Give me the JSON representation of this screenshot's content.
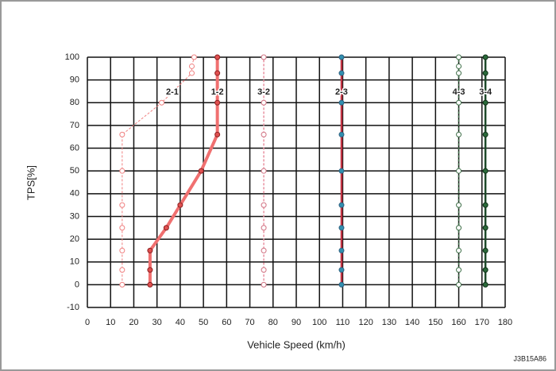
{
  "chart_data": {
    "type": "line",
    "x_label": "Vehicle Speed (km/h)",
    "y_label": "TPS[%]",
    "annotation": "J3B15A86",
    "xlim": [
      0,
      180
    ],
    "xticks": [
      0,
      10,
      20,
      30,
      40,
      50,
      60,
      70,
      80,
      90,
      100,
      110,
      120,
      130,
      140,
      150,
      160,
      170,
      180
    ],
    "ylim": [
      -10,
      100
    ],
    "yticks": [
      -10,
      0,
      10,
      20,
      30,
      40,
      50,
      60,
      70,
      80,
      90,
      100
    ],
    "grid": true,
    "series": [
      {
        "name": "2-1",
        "color": "#f08080",
        "marker_color": "#f08080",
        "marker_fill": "#ffffff",
        "dashed": true,
        "line_width": 1,
        "x": [
          15,
          15,
          15,
          15,
          15,
          15,
          15,
          32,
          45,
          45,
          46
        ],
        "values": [
          0,
          6.5,
          15,
          25,
          35,
          50,
          66,
          80,
          93,
          96,
          100
        ]
      },
      {
        "name": "1-2",
        "color": "#f07070",
        "marker_color": "#8b2020",
        "marker_fill": "#e05050",
        "dashed": false,
        "line_width": 4,
        "x": [
          27,
          27,
          27,
          34,
          40,
          49,
          56,
          56,
          56,
          56
        ],
        "values": [
          0,
          6.5,
          15,
          25,
          35,
          50,
          66,
          80,
          93,
          100
        ]
      },
      {
        "name": "3-2",
        "color": "#e890a0",
        "marker_color": "#d07080",
        "marker_fill": "#ffffff",
        "dashed": true,
        "line_width": 1.5,
        "x": [
          76,
          76,
          76,
          76,
          76,
          76,
          76,
          76,
          76
        ],
        "values": [
          0,
          6.5,
          15,
          25,
          35,
          50,
          66,
          80,
          100
        ]
      },
      {
        "name": "2-3",
        "color": "#c03040",
        "marker_color": "#306080",
        "marker_fill": "#3090b0",
        "dashed": false,
        "line_width": 2.5,
        "x": [
          109.5,
          109.5,
          109.5,
          109.5,
          109.5,
          109.5,
          109.5,
          109.5,
          109.5,
          109.5
        ],
        "values": [
          0,
          6.5,
          15,
          25,
          35,
          50,
          66,
          80,
          93,
          100
        ]
      },
      {
        "name": "4-3",
        "color": "#40704a",
        "marker_color": "#40704a",
        "marker_fill": "#ffffff",
        "dashed": true,
        "line_width": 1.5,
        "x": [
          160,
          160,
          160,
          160,
          160,
          160,
          160,
          160,
          160,
          160,
          160
        ],
        "values": [
          0,
          6.5,
          15,
          25,
          35,
          50,
          66,
          80,
          93,
          96,
          100
        ]
      },
      {
        "name": "3-4",
        "color": "#1e4a2a",
        "marker_color": "#103018",
        "marker_fill": "#2a6a3a",
        "dashed": false,
        "line_width": 2.5,
        "x": [
          171.5,
          171.5,
          171.5,
          171.5,
          171.5,
          171.5,
          171.5,
          171.5,
          171.5,
          171.5
        ],
        "values": [
          0,
          6.5,
          15,
          25,
          35,
          50,
          66,
          80,
          93,
          100
        ]
      }
    ]
  }
}
